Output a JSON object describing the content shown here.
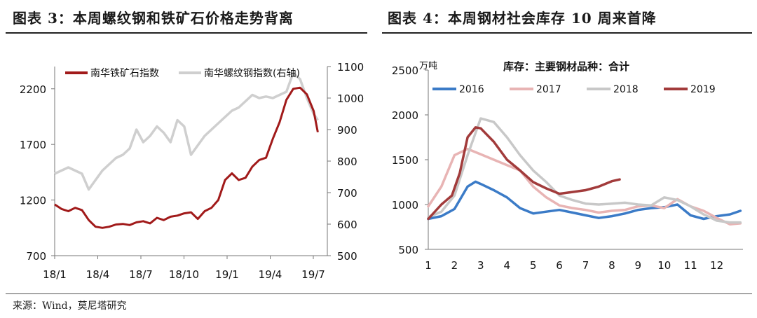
{
  "panels": {
    "left_title": "图表 3：本周螺纹钢和铁矿石价格走势背离",
    "right_title": "图表 4：本周钢材社会库存 10 周来首降"
  },
  "source": "来源：Wind，莫尼塔研究",
  "chart_data": [
    {
      "type": "line",
      "title": "",
      "x_tick_labels": [
        "18/1",
        "18/4",
        "18/7",
        "18/10",
        "19/1",
        "19/4",
        "19/7"
      ],
      "x_range": [
        0,
        20
      ],
      "y_left": {
        "ticks": [
          700,
          1200,
          1700,
          2200
        ],
        "range": [
          700,
          2400
        ]
      },
      "y_right": {
        "ticks": [
          500,
          600,
          700,
          800,
          900,
          1000,
          1100
        ],
        "range": [
          500,
          1100
        ]
      },
      "legend_position": "top-left",
      "colors": {
        "iron_ore": "#a11a1a",
        "rebar": "#cfcfcf"
      },
      "series": [
        {
          "name": "南华铁矿石指数",
          "axis": "left",
          "x": [
            0,
            0.5,
            1,
            1.5,
            2,
            2.5,
            3,
            3.5,
            4,
            4.5,
            5,
            5.5,
            6,
            6.5,
            7,
            7.5,
            8,
            8.5,
            9,
            9.5,
            10,
            10.5,
            11,
            11.5,
            12,
            12.5,
            13,
            13.5,
            14,
            14.5,
            15,
            15.5,
            16,
            16.5,
            17,
            17.5,
            18,
            18.5,
            19,
            19.3
          ],
          "y": [
            1160,
            1120,
            1100,
            1130,
            1110,
            1020,
            960,
            950,
            960,
            980,
            985,
            975,
            1000,
            1010,
            990,
            1040,
            1020,
            1050,
            1060,
            1080,
            1090,
            1030,
            1100,
            1130,
            1200,
            1380,
            1440,
            1380,
            1400,
            1500,
            1560,
            1580,
            1750,
            1900,
            2100,
            2200,
            2210,
            2150,
            2000,
            1810
          ]
        },
        {
          "name": "南华螺纹钢指数(右轴)",
          "axis": "right",
          "x": [
            0,
            0.5,
            1,
            1.5,
            2,
            2.5,
            3,
            3.5,
            4,
            4.5,
            5,
            5.5,
            6,
            6.5,
            7,
            7.5,
            8,
            8.5,
            9,
            9.5,
            10,
            10.5,
            11,
            11.5,
            12,
            12.5,
            13,
            13.5,
            14,
            14.5,
            15,
            15.5,
            16,
            16.5,
            17,
            17.5,
            18,
            18.5,
            19,
            19.3
          ],
          "y": [
            760,
            770,
            780,
            770,
            760,
            710,
            740,
            770,
            790,
            810,
            820,
            840,
            900,
            860,
            880,
            910,
            890,
            860,
            930,
            910,
            820,
            850,
            880,
            900,
            920,
            940,
            960,
            970,
            990,
            1010,
            1000,
            1005,
            1000,
            1010,
            1020,
            1080,
            1060,
            1000,
            950,
            930
          ]
        }
      ]
    },
    {
      "type": "line",
      "title": "库存：主要钢材品种：合计",
      "unit_label": "万吨",
      "x_ticks": [
        1,
        2,
        3,
        4,
        5,
        6,
        7,
        8,
        9,
        10,
        11,
        12
      ],
      "x_range": [
        1,
        13
      ],
      "y_ticks": [
        500,
        1000,
        1500,
        2000,
        2500
      ],
      "y_range": [
        500,
        2500
      ],
      "legend_position": "top",
      "series": [
        {
          "name": "2016",
          "color": "#3b7bc7",
          "x": [
            1,
            1.5,
            2,
            2.5,
            2.8,
            3,
            3.5,
            4,
            4.5,
            5,
            5.5,
            6,
            6.5,
            7,
            7.5,
            8,
            8.5,
            9,
            9.5,
            10,
            10.5,
            11,
            11.5,
            12,
            12.5,
            12.9
          ],
          "y": [
            840,
            870,
            950,
            1200,
            1255,
            1230,
            1160,
            1080,
            960,
            900,
            920,
            940,
            910,
            880,
            850,
            870,
            900,
            940,
            960,
            970,
            1000,
            880,
            840,
            870,
            890,
            930
          ]
        },
        {
          "name": "2017",
          "color": "#e8b4b4",
          "x": [
            1,
            1.5,
            2,
            2.5,
            3,
            3.5,
            4,
            4.5,
            5,
            5.5,
            6,
            6.5,
            7,
            7.5,
            8,
            8.5,
            9,
            9.5,
            10,
            10.5,
            11,
            11.5,
            12,
            12.5,
            12.9
          ],
          "y": [
            980,
            1200,
            1550,
            1620,
            1560,
            1500,
            1440,
            1380,
            1200,
            1080,
            990,
            960,
            940,
            910,
            930,
            940,
            980,
            990,
            960,
            1060,
            980,
            930,
            850,
            780,
            790
          ]
        },
        {
          "name": "2018",
          "color": "#c8c8c8",
          "x": [
            1,
            1.5,
            2,
            2.5,
            3,
            3.5,
            4,
            4.5,
            5,
            5.5,
            6,
            6.5,
            7,
            7.5,
            8,
            8.5,
            9,
            9.5,
            10,
            10.5,
            11,
            11.5,
            12,
            12.5,
            12.9
          ],
          "y": [
            860,
            920,
            1100,
            1550,
            1960,
            1920,
            1750,
            1550,
            1380,
            1250,
            1100,
            1050,
            1010,
            1000,
            1010,
            1020,
            1000,
            990,
            1080,
            1050,
            980,
            890,
            820,
            800,
            800
          ]
        },
        {
          "name": "2019",
          "color": "#a23b3b",
          "x": [
            1,
            1.5,
            1.9,
            2.2,
            2.5,
            2.8,
            3,
            3.5,
            4,
            4.5,
            5,
            5.5,
            6,
            6.5,
            7,
            7.5,
            8,
            8.3
          ],
          "y": [
            840,
            1000,
            1100,
            1350,
            1750,
            1860,
            1850,
            1700,
            1500,
            1380,
            1250,
            1180,
            1120,
            1140,
            1160,
            1200,
            1260,
            1280
          ]
        }
      ]
    }
  ]
}
